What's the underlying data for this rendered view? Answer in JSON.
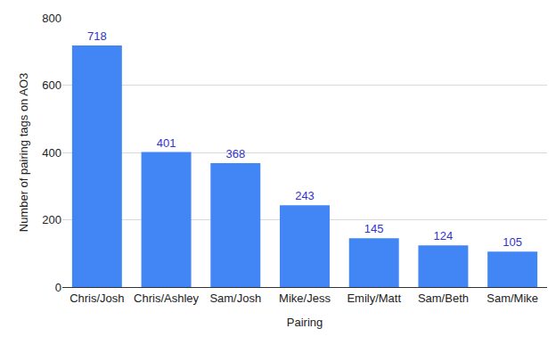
{
  "chart_data": {
    "type": "bar",
    "x_label": "Pairing",
    "y_label": "Number of pairing tags on AO3",
    "categories": [
      "Chris/Josh",
      "Chris/Ashley",
      "Sam/Josh",
      "Mike/Jess",
      "Emily/Matt",
      "Sam/Beth",
      "Sam/Mike"
    ],
    "values": [
      718,
      401,
      368,
      243,
      145,
      124,
      105
    ],
    "color": "#4285f4",
    "ylim": [
      0,
      800
    ],
    "yticks": [
      0,
      200,
      400,
      600,
      800
    ],
    "grid": true,
    "data_labels": true
  }
}
